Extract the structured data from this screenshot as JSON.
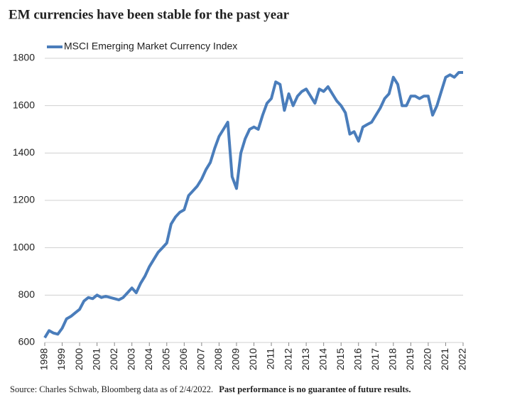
{
  "chart_data": {
    "type": "line",
    "title": "EM currencies have been stable for the past year",
    "source": "Source: Charles Schwab, Bloomberg data as of 2/4/2022.",
    "disclaimer": "Past performance is no guarantee of future results.",
    "x": [
      1998,
      1998.25,
      1998.5,
      1998.75,
      1999,
      1999.25,
      1999.5,
      1999.75,
      2000,
      2000.25,
      2000.5,
      2000.75,
      2001,
      2001.25,
      2001.5,
      2001.75,
      2002,
      2002.25,
      2002.5,
      2002.75,
      2003,
      2003.25,
      2003.5,
      2003.75,
      2004,
      2004.25,
      2004.5,
      2004.75,
      2005,
      2005.25,
      2005.5,
      2005.75,
      2006,
      2006.25,
      2006.5,
      2006.75,
      2007,
      2007.25,
      2007.5,
      2007.75,
      2008,
      2008.25,
      2008.5,
      2008.75,
      2009,
      2009.25,
      2009.5,
      2009.75,
      2010,
      2010.25,
      2010.5,
      2010.75,
      2011,
      2011.25,
      2011.5,
      2011.75,
      2012,
      2012.25,
      2012.5,
      2012.75,
      2013,
      2013.25,
      2013.5,
      2013.75,
      2014,
      2014.25,
      2014.5,
      2014.75,
      2015,
      2015.25,
      2015.5,
      2015.75,
      2016,
      2016.25,
      2016.5,
      2016.75,
      2017,
      2017.25,
      2017.5,
      2017.75,
      2018,
      2018.25,
      2018.5,
      2018.75,
      2019,
      2019.25,
      2019.5,
      2019.75,
      2020,
      2020.25,
      2020.5,
      2020.75,
      2021,
      2021.25,
      2021.5,
      2021.75,
      2022
    ],
    "series": [
      {
        "name": "MSCI Emerging Market Currency Index",
        "color": "#4a7dbb",
        "values": [
          620,
          650,
          640,
          635,
          660,
          700,
          710,
          725,
          740,
          775,
          790,
          785,
          800,
          790,
          795,
          790,
          785,
          780,
          790,
          810,
          830,
          810,
          850,
          880,
          920,
          950,
          980,
          1000,
          1020,
          1100,
          1130,
          1150,
          1160,
          1220,
          1240,
          1260,
          1290,
          1330,
          1360,
          1420,
          1470,
          1500,
          1530,
          1300,
          1250,
          1400,
          1460,
          1500,
          1510,
          1500,
          1560,
          1610,
          1630,
          1700,
          1690,
          1580,
          1650,
          1600,
          1640,
          1660,
          1670,
          1640,
          1610,
          1670,
          1660,
          1680,
          1650,
          1620,
          1600,
          1570,
          1480,
          1490,
          1450,
          1510,
          1520,
          1530,
          1560,
          1590,
          1630,
          1650,
          1720,
          1690,
          1600,
          1600,
          1640,
          1640,
          1630,
          1640,
          1640,
          1560,
          1600,
          1660,
          1720,
          1730,
          1720,
          1740,
          1740
        ]
      }
    ],
    "xlim": [
      1998,
      2022
    ],
    "xticks": [
      1998,
      1999,
      2000,
      2001,
      2002,
      2003,
      2004,
      2005,
      2006,
      2007,
      2008,
      2009,
      2010,
      2011,
      2012,
      2013,
      2014,
      2015,
      2016,
      2017,
      2018,
      2019,
      2020,
      2021,
      2022
    ],
    "ylim": [
      600,
      1800
    ],
    "yticks": [
      600,
      800,
      1000,
      1200,
      1400,
      1600,
      1800
    ],
    "grid": true
  }
}
